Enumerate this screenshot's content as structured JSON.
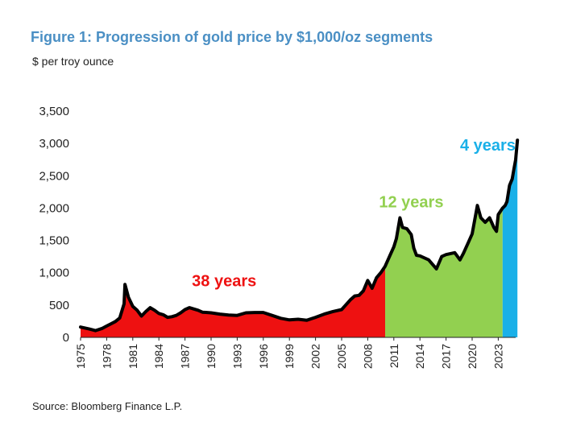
{
  "title": "Figure 1: Progression of gold price by $1,000/oz segments",
  "subtitle": "$ per troy ounce",
  "source": "Source: Bloomberg Finance L.P.",
  "colors": {
    "title": "#4a8fc4",
    "segment_1": "#ee1111",
    "segment_2": "#92d050",
    "segment_3": "#1ab0e8",
    "line": "#000000"
  },
  "chart_data": {
    "type": "area",
    "title": "Figure 1: Progression of gold price by $1,000/oz segments",
    "ylabel": "$ per troy ounce",
    "xlabel": "",
    "xlim": [
      1975,
      2025
    ],
    "ylim": [
      0,
      3500
    ],
    "y_ticks": [
      0,
      500,
      1000,
      1500,
      2000,
      2500,
      3000,
      3500
    ],
    "y_tick_labels": [
      "0",
      "500",
      "1,000",
      "1,500",
      "2,000",
      "2,500",
      "3,000",
      "3,500"
    ],
    "x_tick_labels": [
      "1975",
      "1978",
      "1981",
      "1984",
      "1987",
      "1990",
      "1993",
      "1996",
      "1999",
      "2002",
      "2005",
      "2008",
      "2011",
      "2014",
      "2017",
      "2020",
      "2023"
    ],
    "grid": false,
    "legend": "none",
    "series": [
      {
        "x": [
          1975,
          1976,
          1976.7,
          1977.5,
          1978,
          1978.5,
          1979,
          1979.5,
          1980,
          1980.1,
          1980.5,
          1981,
          1981.5,
          1982,
          1982.5,
          1983,
          1983.5,
          1984,
          1984.5,
          1985,
          1985.5,
          1986,
          1986.5,
          1987,
          1987.5,
          1988,
          1988.5,
          1989,
          1990,
          1991,
          1992,
          1993,
          1994,
          1995,
          1996,
          1997,
          1998,
          1999,
          2000,
          2001,
          2002,
          2003,
          2004,
          2005,
          2006,
          2006.5,
          2007,
          2007.5,
          2008,
          2008.5,
          2009,
          2009.5,
          2010
        ],
        "y": [
          160,
          130,
          105,
          140,
          175,
          210,
          245,
          300,
          520,
          820,
          620,
          480,
          420,
          330,
          400,
          460,
          420,
          370,
          350,
          310,
          320,
          340,
          380,
          430,
          460,
          440,
          420,
          390,
          380,
          360,
          345,
          340,
          380,
          385,
          385,
          340,
          295,
          270,
          280,
          265,
          310,
          360,
          400,
          430,
          580,
          640,
          650,
          720,
          880,
          760,
          920,
          1000,
          1100
        ]
      },
      {
        "x": [
          2010,
          2010.5,
          2011,
          2011.3,
          2011.7,
          2012,
          2012.5,
          2013,
          2013.3,
          2013.6,
          2014,
          2015,
          2015.9,
          2016.5,
          2017,
          2018,
          2018.6,
          2019,
          2019.6,
          2020,
          2020.6,
          2021,
          2021.5,
          2022,
          2022.5,
          2022.8,
          2023,
          2023.5
        ],
        "y": [
          1100,
          1250,
          1400,
          1530,
          1850,
          1700,
          1680,
          1590,
          1380,
          1270,
          1260,
          1200,
          1060,
          1250,
          1280,
          1310,
          1200,
          1300,
          1480,
          1600,
          2040,
          1850,
          1780,
          1850,
          1700,
          1640,
          1900,
          2000
        ]
      },
      {
        "x": [
          2023.5,
          2023.8,
          2024,
          2024.3,
          2024.6,
          2024.8,
          2025,
          2025.2
        ],
        "y": [
          2000,
          2040,
          2100,
          2350,
          2450,
          2600,
          2750,
          3050
        ]
      }
    ],
    "segment_labels": [
      {
        "text": "38 years",
        "x": 1991.5,
        "y": 790
      },
      {
        "text": "12 years",
        "x": 2013,
        "y": 2010
      },
      {
        "text": "4 years",
        "x": 2021.8,
        "y": 2890
      }
    ]
  }
}
